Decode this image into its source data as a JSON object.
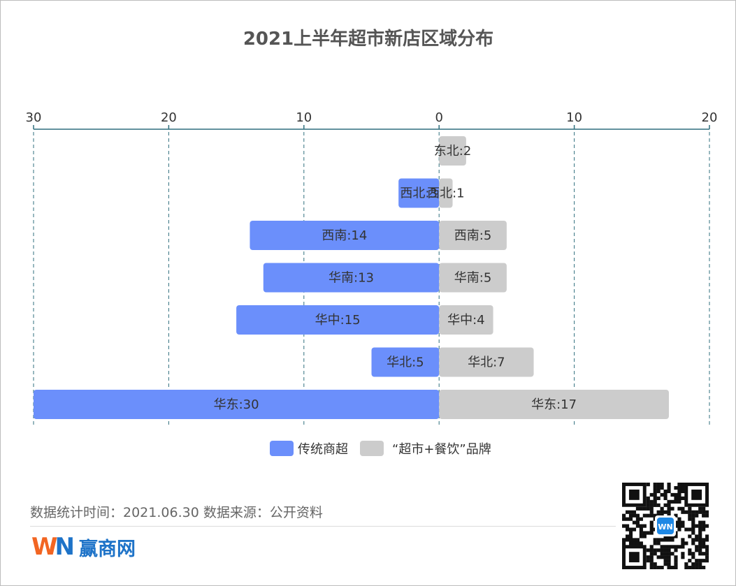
{
  "page": {
    "footer_text": "数据统计时间：2021.06.30 数据来源：公开资料",
    "brand_mark_w": "W",
    "brand_mark_n": "N",
    "brand_name": "赢商网",
    "qr_badge": "WN"
  },
  "chart_data": {
    "type": "bar",
    "orientation": "horizontal-diverging",
    "title": "2021上半年超市新店区域分布",
    "categories": [
      "东北",
      "西北",
      "西南",
      "华南",
      "华中",
      "华北",
      "华东"
    ],
    "series": [
      {
        "name": "传统商超",
        "side": "left",
        "color": "#6b8ffb",
        "values": [
          0,
          3,
          14,
          13,
          15,
          5,
          30
        ]
      },
      {
        "name": "“超市+餐饮”品牌",
        "side": "right",
        "color": "#cccccc",
        "values": [
          2,
          1,
          5,
          5,
          4,
          7,
          17
        ]
      }
    ],
    "data_labels": {
      "left": [
        "",
        "西北:3",
        "西南:14",
        "华南:13",
        "华中:15",
        "华北:5",
        "华东:30"
      ],
      "right": [
        "东北:2",
        "西北:1",
        "西南:5",
        "华南:5",
        "华中:4",
        "华北:7",
        "华东:17"
      ]
    },
    "axis": {
      "ticks": [
        -30,
        -20,
        -10,
        0,
        10,
        20
      ],
      "tick_labels": [
        "30",
        "20",
        "10",
        "0",
        "10",
        "20"
      ],
      "range": [
        -30,
        20
      ],
      "position": "top",
      "color": "#2f6f7e"
    },
    "grid": true,
    "legend_position": "bottom-center"
  }
}
